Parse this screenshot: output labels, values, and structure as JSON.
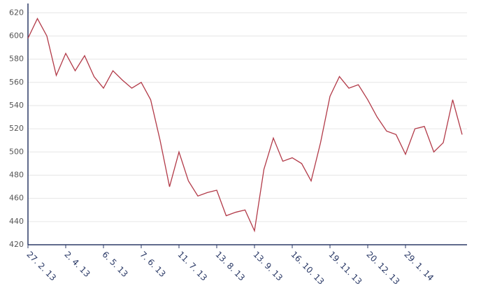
{
  "chart_data": {
    "type": "line",
    "categories": [
      "27. 2. 13",
      null,
      null,
      null,
      "2. 4. 13",
      null,
      null,
      null,
      "6. 5. 13",
      null,
      null,
      null,
      "7. 6. 13",
      null,
      null,
      null,
      "11. 7. 13",
      null,
      null,
      null,
      "13. 8. 13",
      null,
      null,
      null,
      "13. 9. 13",
      null,
      null,
      null,
      "16. 10. 13",
      null,
      null,
      null,
      "19. 11. 13",
      null,
      null,
      null,
      "20. 12. 13",
      null,
      null,
      null,
      "29. 1. 14",
      null,
      null,
      null,
      null,
      null,
      null
    ],
    "series": [
      {
        "color": "#b23a48",
        "values": [
          598,
          615,
          600,
          566,
          585,
          570,
          583,
          565,
          555,
          570,
          562,
          555,
          560,
          545,
          510,
          470,
          500,
          475,
          462,
          465,
          467,
          445,
          448,
          450,
          432,
          485,
          512,
          492,
          495,
          490,
          475,
          508,
          548,
          565,
          555,
          558,
          545,
          530,
          518,
          515,
          498,
          520,
          522,
          500,
          508,
          545,
          515
        ]
      }
    ],
    "ylim": [
      420,
      628
    ],
    "yticks": [
      420,
      440,
      460,
      480,
      500,
      520,
      540,
      560,
      580,
      600,
      620
    ],
    "grid": true
  }
}
